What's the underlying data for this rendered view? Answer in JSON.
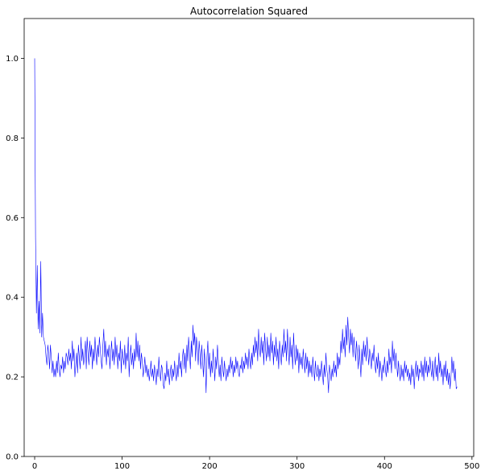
{
  "chart_data": {
    "type": "line",
    "title": "Autocorrelation Squared",
    "xlabel": "",
    "ylabel": "",
    "xlim": [
      -12,
      502
    ],
    "ylim": [
      0.0,
      1.1
    ],
    "x_ticks": [
      0,
      100,
      200,
      300,
      400,
      500
    ],
    "x_tick_labels": [
      "0",
      "100",
      "200",
      "300",
      "400",
      "500"
    ],
    "y_ticks": [
      0.0,
      0.2,
      0.4,
      0.6,
      0.8,
      1.0
    ],
    "y_tick_labels": [
      "0.0",
      "0.2",
      "0.4",
      "0.6",
      "0.8",
      "1.0"
    ],
    "grid": false,
    "series": [
      {
        "color": "#0000ff",
        "x_start": 0,
        "x_step": 1,
        "values": [
          1.0,
          0.55,
          0.36,
          0.48,
          0.32,
          0.39,
          0.31,
          0.49,
          0.3,
          0.36,
          0.3,
          0.29,
          0.28,
          0.25,
          0.23,
          0.28,
          0.26,
          0.22,
          0.28,
          0.25,
          0.21,
          0.24,
          0.2,
          0.22,
          0.2,
          0.24,
          0.21,
          0.26,
          0.22,
          0.2,
          0.23,
          0.22,
          0.25,
          0.21,
          0.24,
          0.22,
          0.26,
          0.25,
          0.23,
          0.27,
          0.24,
          0.26,
          0.22,
          0.29,
          0.24,
          0.27,
          0.2,
          0.23,
          0.26,
          0.21,
          0.28,
          0.25,
          0.22,
          0.3,
          0.24,
          0.27,
          0.23,
          0.25,
          0.29,
          0.22,
          0.3,
          0.26,
          0.23,
          0.29,
          0.25,
          0.28,
          0.22,
          0.27,
          0.24,
          0.3,
          0.26,
          0.23,
          0.28,
          0.25,
          0.3,
          0.27,
          0.24,
          0.22,
          0.28,
          0.32,
          0.25,
          0.29,
          0.23,
          0.27,
          0.25,
          0.28,
          0.22,
          0.26,
          0.29,
          0.24,
          0.27,
          0.23,
          0.3,
          0.25,
          0.28,
          0.22,
          0.26,
          0.24,
          0.29,
          0.21,
          0.27,
          0.25,
          0.23,
          0.28,
          0.22,
          0.26,
          0.24,
          0.3,
          0.2,
          0.25,
          0.28,
          0.23,
          0.26,
          0.22,
          0.27,
          0.24,
          0.31,
          0.25,
          0.29,
          0.24,
          0.28,
          0.22,
          0.26,
          0.24,
          0.2,
          0.22,
          0.25,
          0.21,
          0.23,
          0.2,
          0.22,
          0.19,
          0.21,
          0.24,
          0.2,
          0.22,
          0.19,
          0.23,
          0.21,
          0.18,
          0.22,
          0.2,
          0.25,
          0.21,
          0.19,
          0.23,
          0.22,
          0.18,
          0.17,
          0.21,
          0.19,
          0.24,
          0.2,
          0.22,
          0.18,
          0.21,
          0.23,
          0.19,
          0.22,
          0.2,
          0.24,
          0.21,
          0.19,
          0.23,
          0.2,
          0.26,
          0.22,
          0.24,
          0.2,
          0.25,
          0.27,
          0.22,
          0.26,
          0.21,
          0.28,
          0.24,
          0.3,
          0.26,
          0.22,
          0.29,
          0.25,
          0.33,
          0.28,
          0.31,
          0.24,
          0.3,
          0.27,
          0.23,
          0.29,
          0.26,
          0.22,
          0.28,
          0.24,
          0.2,
          0.27,
          0.23,
          0.16,
          0.25,
          0.29,
          0.22,
          0.26,
          0.2,
          0.24,
          0.21,
          0.27,
          0.23,
          0.19,
          0.25,
          0.22,
          0.28,
          0.24,
          0.2,
          0.23,
          0.19,
          0.25,
          0.22,
          0.2,
          0.24,
          0.21,
          0.19,
          0.22,
          0.2,
          0.23,
          0.21,
          0.25,
          0.22,
          0.24,
          0.2,
          0.23,
          0.21,
          0.25,
          0.22,
          0.24,
          0.21,
          0.2,
          0.23,
          0.22,
          0.25,
          0.21,
          0.24,
          0.22,
          0.26,
          0.23,
          0.25,
          0.22,
          0.27,
          0.24,
          0.22,
          0.26,
          0.23,
          0.28,
          0.25,
          0.3,
          0.26,
          0.29,
          0.24,
          0.32,
          0.27,
          0.25,
          0.3,
          0.26,
          0.29,
          0.23,
          0.31,
          0.27,
          0.24,
          0.3,
          0.25,
          0.28,
          0.24,
          0.31,
          0.26,
          0.29,
          0.23,
          0.28,
          0.25,
          0.3,
          0.24,
          0.27,
          0.22,
          0.29,
          0.26,
          0.23,
          0.28,
          0.25,
          0.32,
          0.26,
          0.29,
          0.24,
          0.32,
          0.27,
          0.23,
          0.3,
          0.25,
          0.28,
          0.22,
          0.31,
          0.26,
          0.23,
          0.28,
          0.24,
          0.27,
          0.21,
          0.26,
          0.23,
          0.25,
          0.22,
          0.27,
          0.24,
          0.21,
          0.26,
          0.22,
          0.25,
          0.2,
          0.24,
          0.21,
          0.23,
          0.2,
          0.25,
          0.22,
          0.19,
          0.24,
          0.21,
          0.2,
          0.23,
          0.19,
          0.22,
          0.2,
          0.24,
          0.21,
          0.18,
          0.23,
          0.2,
          0.26,
          0.22,
          0.2,
          0.16,
          0.23,
          0.21,
          0.19,
          0.22,
          0.2,
          0.24,
          0.21,
          0.23,
          0.2,
          0.26,
          0.22,
          0.25,
          0.23,
          0.29,
          0.26,
          0.32,
          0.27,
          0.3,
          0.25,
          0.33,
          0.28,
          0.35,
          0.3,
          0.26,
          0.32,
          0.28,
          0.31,
          0.25,
          0.3,
          0.27,
          0.24,
          0.29,
          0.26,
          0.22,
          0.28,
          0.24,
          0.2,
          0.27,
          0.23,
          0.29,
          0.25,
          0.28,
          0.24,
          0.3,
          0.26,
          0.23,
          0.27,
          0.25,
          0.22,
          0.26,
          0.24,
          0.28,
          0.23,
          0.21,
          0.25,
          0.22,
          0.26,
          0.2,
          0.24,
          0.22,
          0.19,
          0.23,
          0.21,
          0.25,
          0.22,
          0.2,
          0.24,
          0.21,
          0.27,
          0.23,
          0.25,
          0.21,
          0.29,
          0.24,
          0.27,
          0.22,
          0.26,
          0.23,
          0.2,
          0.24,
          0.21,
          0.19,
          0.23,
          0.2,
          0.22,
          0.19,
          0.24,
          0.21,
          0.23,
          0.2,
          0.22,
          0.19,
          0.21,
          0.18,
          0.23,
          0.2,
          0.22,
          0.17,
          0.21,
          0.24,
          0.2,
          0.23,
          0.19,
          0.22,
          0.21,
          0.24,
          0.2,
          0.23,
          0.19,
          0.25,
          0.21,
          0.24,
          0.2,
          0.23,
          0.21,
          0.25,
          0.22,
          0.2,
          0.24,
          0.19,
          0.22,
          0.25,
          0.2,
          0.23,
          0.19,
          0.26,
          0.21,
          0.24,
          0.2,
          0.22,
          0.18,
          0.23,
          0.2,
          0.24,
          0.19,
          0.22,
          0.18,
          0.21,
          0.17,
          0.2,
          0.25,
          0.21,
          0.24,
          0.19,
          0.22,
          0.17,
          0.175
        ]
      }
    ]
  }
}
